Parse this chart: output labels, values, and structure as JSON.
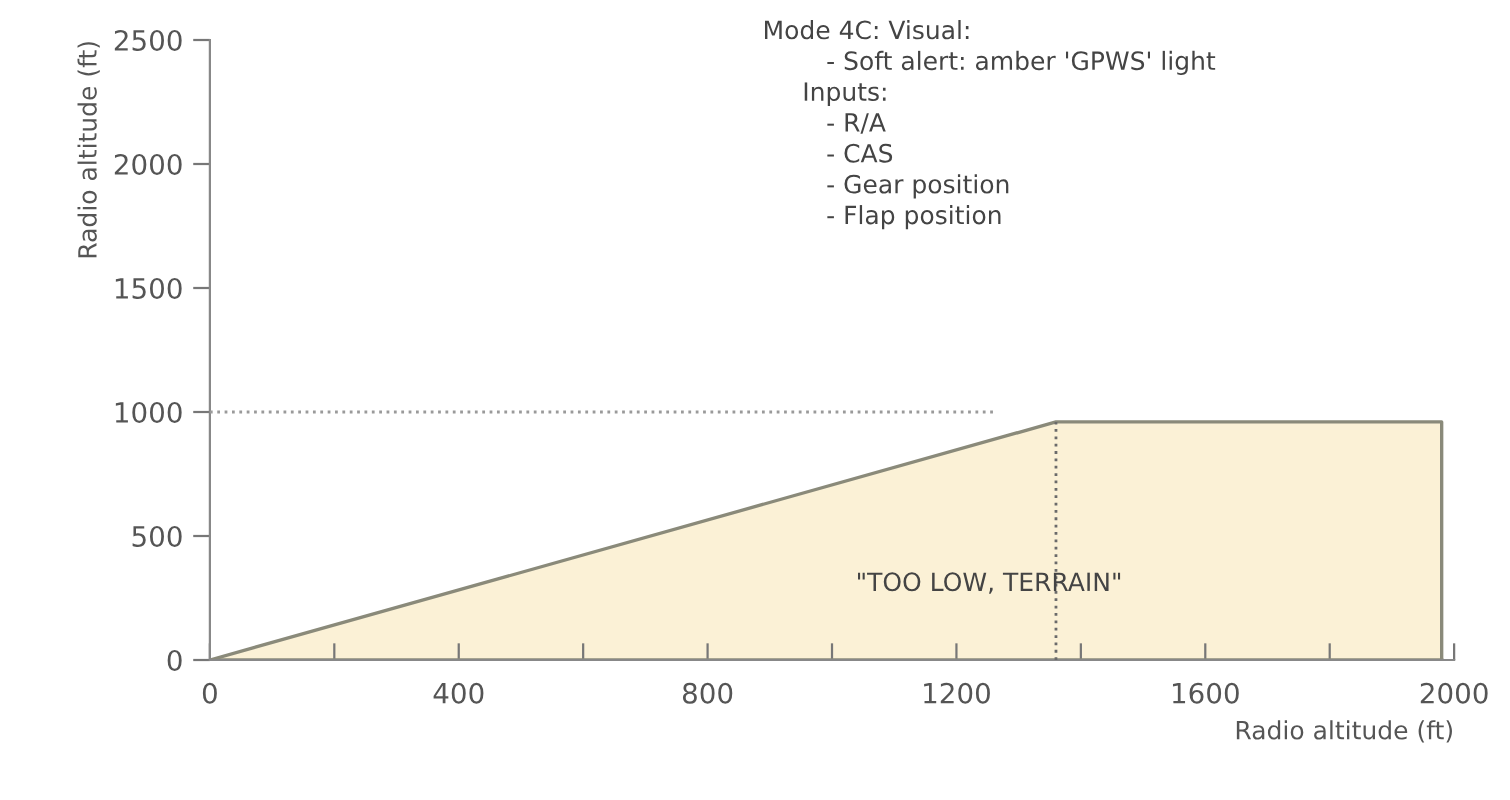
{
  "chart_data": {
    "type": "area",
    "xlabel": "Radio altitude (ft)",
    "ylabel": "Radio altitude (ft)",
    "x": [
      0,
      1360,
      1980,
      1980
    ],
    "series": [
      {
        "color": "#fbf1d6",
        "values": [
          0,
          960,
          960,
          0
        ]
      }
    ],
    "xlim": [
      0,
      2000
    ],
    "ylim": [
      0,
      2500
    ],
    "xticks": [
      0,
      {
        "value": 200,
        "label": null
      },
      400,
      {
        "value": 600,
        "label": null
      },
      800,
      {
        "value": 1000,
        "label": null
      },
      1200,
      {
        "value": 1400,
        "label": null
      },
      1600,
      {
        "value": 1800,
        "label": null
      },
      2000
    ],
    "yticks": [
      0,
      500,
      1000,
      1500,
      2000,
      2500
    ],
    "ref_lines": [
      {
        "axis": "y",
        "value": 1000,
        "color": "#9a9a9a",
        "line_style": "dotted"
      },
      {
        "axis": "x",
        "value": 1360,
        "color": "#6a6a6a",
        "line_style": "dotted"
      }
    ],
    "annotations": [
      "Mode 4C: Visual:\n        - Soft alert: amber 'GPWS' light\n     Inputs:\n        - R/A\n        - CAS\n        - Gear position\n        - Flap position",
      "\"TOO LOW, TERRAIN\""
    ],
    "grid": false
  }
}
